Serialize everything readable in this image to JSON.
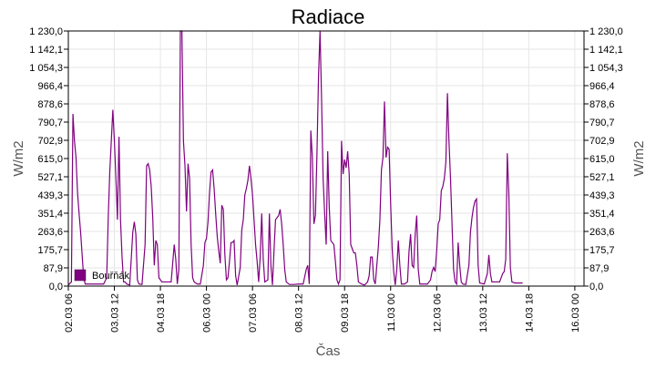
{
  "chart_data": {
    "type": "line",
    "title": "Radiace",
    "xlabel": "Čas",
    "ylabel": "W/m2",
    "ylabel_right": "W/m2",
    "ylim": [
      0,
      1230
    ],
    "yticks": [
      "0,0",
      "87,9",
      "175,7",
      "263,6",
      "351,4",
      "439,3",
      "527,1",
      "615,0",
      "702,9",
      "790,7",
      "878,6",
      "966,4",
      "1 054,3",
      "1 142,1",
      "1 230,0"
    ],
    "xlim": [
      0,
      336
    ],
    "xticks": [
      {
        "x": 0,
        "label": "02.03 06"
      },
      {
        "x": 30,
        "label": "03.03 12"
      },
      {
        "x": 60,
        "label": "04.03 18"
      },
      {
        "x": 90,
        "label": "06.03 00"
      },
      {
        "x": 120,
        "label": "07.03 06"
      },
      {
        "x": 150,
        "label": "08.03 12"
      },
      {
        "x": 180,
        "label": "09.03 18"
      },
      {
        "x": 210,
        "label": "11.03 00"
      },
      {
        "x": 240,
        "label": "12.03 06"
      },
      {
        "x": 270,
        "label": "13.03 12"
      },
      {
        "x": 300,
        "label": "14.03 18"
      },
      {
        "x": 330,
        "label": "16.03 00"
      }
    ],
    "grid": true,
    "legend": "bottom-left",
    "series": [
      {
        "name": "Bouřňák",
        "color": "#800080",
        "points": [
          [
            0,
            5
          ],
          [
            2,
            20
          ],
          [
            3,
            830
          ],
          [
            4,
            700
          ],
          [
            5,
            620
          ],
          [
            6,
            450
          ],
          [
            7,
            350
          ],
          [
            8,
            260
          ],
          [
            9,
            150
          ],
          [
            10,
            40
          ],
          [
            11,
            10
          ],
          [
            14,
            10
          ],
          [
            17,
            10
          ],
          [
            20,
            10
          ],
          [
            23,
            10
          ],
          [
            25,
            40
          ],
          [
            26,
            330
          ],
          [
            27,
            550
          ],
          [
            28,
            700
          ],
          [
            29,
            850
          ],
          [
            30,
            700
          ],
          [
            31,
            520
          ],
          [
            32,
            320
          ],
          [
            33,
            720
          ],
          [
            34,
            320
          ],
          [
            35,
            140
          ],
          [
            36,
            20
          ],
          [
            37,
            20
          ],
          [
            38,
            10
          ],
          [
            40,
            5
          ],
          [
            42,
            260
          ],
          [
            43,
            310
          ],
          [
            44,
            250
          ],
          [
            45,
            30
          ],
          [
            46,
            10
          ],
          [
            48,
            8
          ],
          [
            50,
            200
          ],
          [
            51,
            580
          ],
          [
            52,
            590
          ],
          [
            53,
            560
          ],
          [
            54,
            480
          ],
          [
            55,
            330
          ],
          [
            56,
            100
          ],
          [
            57,
            220
          ],
          [
            58,
            200
          ],
          [
            59,
            40
          ],
          [
            61,
            20
          ],
          [
            64,
            20
          ],
          [
            67,
            20
          ],
          [
            69,
            200
          ],
          [
            70,
            130
          ],
          [
            71,
            10
          ],
          [
            72,
            80
          ],
          [
            73,
            1230
          ],
          [
            74,
            1230
          ],
          [
            75,
            700
          ],
          [
            76,
            580
          ],
          [
            77,
            360
          ],
          [
            78,
            590
          ],
          [
            79,
            520
          ],
          [
            80,
            200
          ],
          [
            81,
            40
          ],
          [
            82,
            20
          ],
          [
            84,
            10
          ],
          [
            86,
            10
          ],
          [
            88,
            100
          ],
          [
            89,
            210
          ],
          [
            90,
            230
          ],
          [
            91,
            310
          ],
          [
            92,
            450
          ],
          [
            93,
            550
          ],
          [
            94,
            560
          ],
          [
            95,
            470
          ],
          [
            96,
            350
          ],
          [
            97,
            240
          ],
          [
            98,
            170
          ],
          [
            99,
            110
          ],
          [
            100,
            390
          ],
          [
            101,
            370
          ],
          [
            102,
            150
          ],
          [
            103,
            30
          ],
          [
            104,
            40
          ],
          [
            105,
            120
          ],
          [
            106,
            210
          ],
          [
            107,
            210
          ],
          [
            108,
            220
          ],
          [
            109,
            50
          ],
          [
            110,
            5
          ],
          [
            112,
            90
          ],
          [
            113,
            270
          ],
          [
            114,
            320
          ],
          [
            115,
            440
          ],
          [
            116,
            470
          ],
          [
            117,
            510
          ],
          [
            118,
            580
          ],
          [
            119,
            520
          ],
          [
            120,
            440
          ],
          [
            121,
            320
          ],
          [
            122,
            200
          ],
          [
            123,
            120
          ],
          [
            124,
            20
          ],
          [
            125,
            140
          ],
          [
            126,
            350
          ],
          [
            127,
            130
          ],
          [
            128,
            20
          ],
          [
            130,
            30
          ],
          [
            131,
            350
          ],
          [
            132,
            100
          ],
          [
            133,
            5
          ],
          [
            134,
            170
          ],
          [
            135,
            320
          ],
          [
            136,
            330
          ],
          [
            137,
            340
          ],
          [
            138,
            370
          ],
          [
            139,
            300
          ],
          [
            140,
            200
          ],
          [
            141,
            80
          ],
          [
            142,
            20
          ],
          [
            144,
            8
          ],
          [
            147,
            8
          ],
          [
            150,
            10
          ],
          [
            153,
            10
          ],
          [
            155,
            80
          ],
          [
            156,
            100
          ],
          [
            157,
            10
          ],
          [
            158,
            750
          ],
          [
            159,
            620
          ],
          [
            160,
            300
          ],
          [
            161,
            340
          ],
          [
            162,
            640
          ],
          [
            163,
            1010
          ],
          [
            164,
            1230
          ],
          [
            165,
            900
          ],
          [
            166,
            520
          ],
          [
            167,
            350
          ],
          [
            168,
            200
          ],
          [
            169,
            650
          ],
          [
            170,
            380
          ],
          [
            171,
            220
          ],
          [
            172,
            210
          ],
          [
            173,
            200
          ],
          [
            174,
            120
          ],
          [
            175,
            30
          ],
          [
            176,
            10
          ],
          [
            177,
            30
          ],
          [
            178,
            700
          ],
          [
            179,
            540
          ],
          [
            180,
            610
          ],
          [
            181,
            570
          ],
          [
            182,
            650
          ],
          [
            183,
            540
          ],
          [
            184,
            200
          ],
          [
            185,
            180
          ],
          [
            186,
            160
          ],
          [
            187,
            160
          ],
          [
            188,
            100
          ],
          [
            189,
            20
          ],
          [
            191,
            10
          ],
          [
            193,
            5
          ],
          [
            195,
            20
          ],
          [
            196,
            50
          ],
          [
            197,
            140
          ],
          [
            198,
            140
          ],
          [
            199,
            30
          ],
          [
            200,
            10
          ],
          [
            202,
            190
          ],
          [
            203,
            320
          ],
          [
            204,
            560
          ],
          [
            205,
            620
          ],
          [
            206,
            890
          ],
          [
            207,
            620
          ],
          [
            208,
            670
          ],
          [
            209,
            660
          ],
          [
            210,
            400
          ],
          [
            211,
            180
          ],
          [
            212,
            70
          ],
          [
            213,
            5
          ],
          [
            214,
            80
          ],
          [
            215,
            220
          ],
          [
            216,
            100
          ],
          [
            217,
            10
          ],
          [
            219,
            10
          ],
          [
            221,
            20
          ],
          [
            222,
            170
          ],
          [
            223,
            250
          ],
          [
            224,
            100
          ],
          [
            225,
            90
          ],
          [
            226,
            250
          ],
          [
            227,
            340
          ],
          [
            228,
            80
          ],
          [
            229,
            10
          ],
          [
            231,
            10
          ],
          [
            234,
            10
          ],
          [
            236,
            30
          ],
          [
            237,
            70
          ],
          [
            238,
            90
          ],
          [
            239,
            70
          ],
          [
            240,
            170
          ],
          [
            241,
            300
          ],
          [
            242,
            320
          ],
          [
            243,
            460
          ],
          [
            244,
            480
          ],
          [
            245,
            520
          ],
          [
            246,
            600
          ],
          [
            247,
            930
          ],
          [
            248,
            700
          ],
          [
            249,
            520
          ],
          [
            250,
            300
          ],
          [
            251,
            80
          ],
          [
            252,
            20
          ],
          [
            253,
            10
          ],
          [
            254,
            210
          ],
          [
            255,
            100
          ],
          [
            256,
            20
          ],
          [
            257,
            10
          ],
          [
            259,
            8
          ],
          [
            261,
            100
          ],
          [
            262,
            260
          ],
          [
            263,
            330
          ],
          [
            264,
            380
          ],
          [
            265,
            410
          ],
          [
            266,
            420
          ],
          [
            267,
            100
          ],
          [
            268,
            15
          ],
          [
            271,
            10
          ],
          [
            273,
            60
          ],
          [
            274,
            150
          ],
          [
            275,
            60
          ],
          [
            276,
            20
          ],
          [
            278,
            20
          ],
          [
            281,
            20
          ],
          [
            283,
            60
          ],
          [
            284,
            70
          ],
          [
            285,
            130
          ],
          [
            286,
            640
          ],
          [
            287,
            450
          ],
          [
            288,
            90
          ],
          [
            289,
            20
          ],
          [
            291,
            15
          ],
          [
            294,
            15
          ],
          [
            296,
            15
          ]
        ]
      }
    ]
  }
}
